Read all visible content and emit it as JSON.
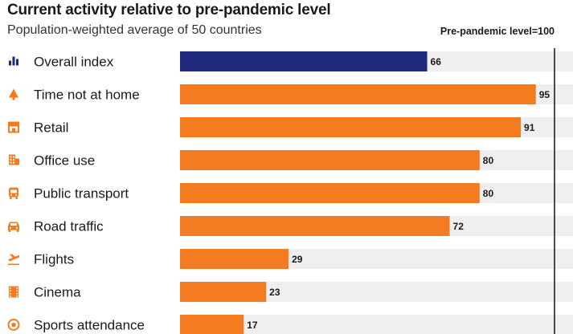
{
  "header": {
    "title": "Current activity relative to pre-pandemic level",
    "subtitle": "Population-weighted average of 50 countries",
    "reference_label": "Pre-pandemic level=100"
  },
  "colors": {
    "highlight": "#1f2a7c",
    "bar": "#f47b20",
    "track": "#efefef",
    "reference_line": "#111111"
  },
  "chart_data": {
    "type": "bar",
    "orientation": "horizontal",
    "title": "Current activity relative to pre-pandemic level",
    "subtitle": "Population-weighted average of 50 countries",
    "categories": [
      "Overall index",
      "Time not at home",
      "Retail",
      "Office use",
      "Public transport",
      "Road traffic",
      "Flights",
      "Cinema",
      "Sports attendance"
    ],
    "icons": [
      "bar-chart-icon",
      "tree-icon",
      "storefront-icon",
      "office-building-icon",
      "bus-icon",
      "car-icon",
      "plane-icon",
      "film-strip-icon",
      "football-icon"
    ],
    "values": [
      66,
      95,
      91,
      80,
      80,
      72,
      29,
      23,
      17
    ],
    "highlight_index": 0,
    "xlim": [
      0,
      100
    ],
    "reference_value": 100,
    "reference_label": "Pre-pandemic level=100",
    "grid": false,
    "data_labels": true
  }
}
